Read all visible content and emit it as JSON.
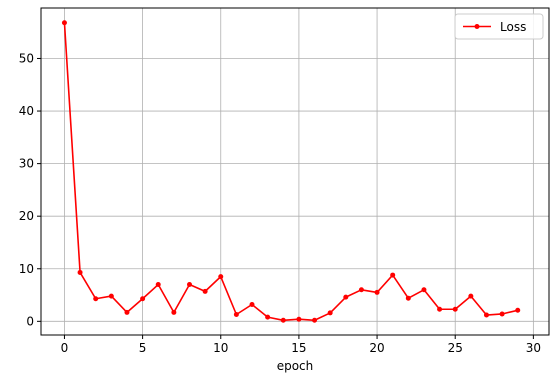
{
  "chart_data": {
    "type": "line",
    "title": "",
    "xlabel": "epoch",
    "ylabel": "",
    "xlim": [
      -1.5,
      31
    ],
    "ylim": [
      -2.6,
      59.6
    ],
    "xticks": [
      0,
      5,
      10,
      15,
      20,
      25,
      30
    ],
    "yticks": [
      0,
      10,
      20,
      30,
      40,
      50
    ],
    "grid": true,
    "legend_position": "top-right",
    "series": [
      {
        "name": "Loss",
        "color": "#ff0000",
        "marker": "dot",
        "x": [
          0,
          1,
          2,
          3,
          4,
          5,
          6,
          7,
          8,
          9,
          10,
          11,
          12,
          13,
          14,
          15,
          16,
          17,
          18,
          19,
          20,
          21,
          22,
          23,
          24,
          25,
          26,
          27,
          28,
          29
        ],
        "y": [
          56.8,
          9.3,
          4.3,
          4.8,
          1.7,
          4.3,
          7.0,
          1.7,
          7.0,
          5.7,
          8.5,
          1.3,
          3.2,
          0.8,
          0.2,
          0.4,
          0.2,
          1.6,
          4.6,
          6.0,
          5.5,
          8.8,
          4.4,
          6.0,
          2.3,
          2.3,
          4.8,
          1.2,
          1.4,
          2.1
        ]
      }
    ]
  }
}
